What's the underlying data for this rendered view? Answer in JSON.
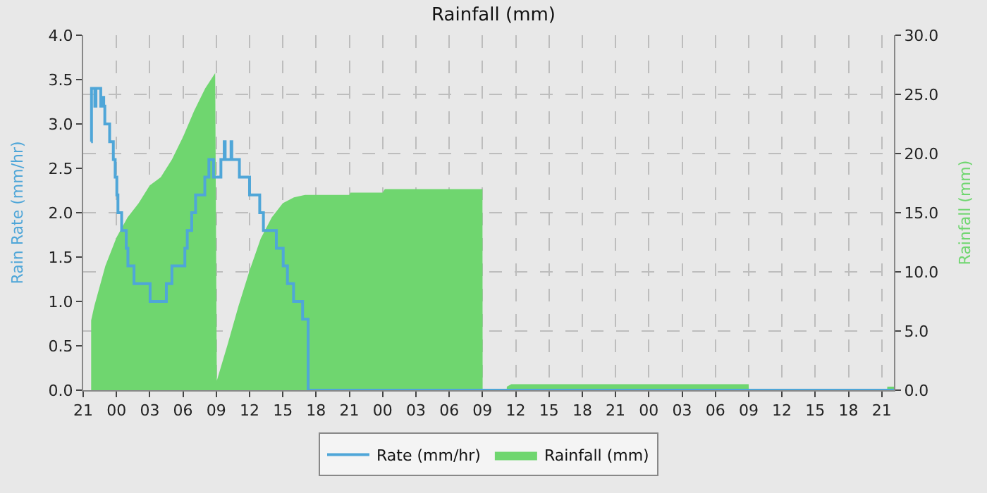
{
  "chart_data": {
    "type": "step",
    "title": "Rainfall (mm)",
    "ylabel": "Rain Rate (mm/hr)",
    "y2label": "Rainfall (mm)",
    "xlim": [
      "--01-01T21:00",
      "--01-04T22:06"
    ],
    "xticks": [
      {
        "value": "--01-01T21:00",
        "label": "21"
      },
      {
        "value": "--01-02T00:00",
        "label": "00"
      },
      {
        "value": "--01-02T03:00",
        "label": "03"
      },
      {
        "value": "--01-02T06:00",
        "label": "06"
      },
      {
        "value": "--01-02T09:00",
        "label": "09"
      },
      {
        "value": "--01-02T12:00",
        "label": "12"
      },
      {
        "value": "--01-02T15:00",
        "label": "15"
      },
      {
        "value": "--01-02T18:00",
        "label": "18"
      },
      {
        "value": "--01-02T21:00",
        "label": "21"
      },
      {
        "value": "--01-03T00:00",
        "label": "00"
      },
      {
        "value": "--01-03T03:00",
        "label": "03"
      },
      {
        "value": "--01-03T06:00",
        "label": "06"
      },
      {
        "value": "--01-03T09:00",
        "label": "09"
      },
      {
        "value": "--01-03T12:00",
        "label": "12"
      },
      {
        "value": "--01-03T15:00",
        "label": "15"
      },
      {
        "value": "--01-03T18:00",
        "label": "18"
      },
      {
        "value": "--01-03T21:00",
        "label": "21"
      },
      {
        "value": "--01-04T00:00",
        "label": "00"
      },
      {
        "value": "--01-04T03:00",
        "label": "03"
      },
      {
        "value": "--01-04T06:00",
        "label": "06"
      },
      {
        "value": "--01-04T09:00",
        "label": "09"
      },
      {
        "value": "--01-04T12:00",
        "label": "12"
      },
      {
        "value": "--01-04T15:00",
        "label": "15"
      },
      {
        "value": "--01-04T18:00",
        "label": "18"
      },
      {
        "value": "--01-04T21:00",
        "label": "21"
      }
    ],
    "ylim": [
      0,
      4
    ],
    "yticks": [
      {
        "value": 0,
        "label": "0.0"
      },
      {
        "value": 0.5,
        "label": "0.5"
      },
      {
        "value": 1,
        "label": "1.0"
      },
      {
        "value": 1.5,
        "label": "1.5"
      },
      {
        "value": 2,
        "label": "2.0"
      },
      {
        "value": 2.5,
        "label": "2.5"
      },
      {
        "value": 3,
        "label": "3.0"
      },
      {
        "value": 3.5,
        "label": "3.5"
      },
      {
        "value": 4,
        "label": "4.0"
      }
    ],
    "y2lim": [
      0,
      30
    ],
    "y2ticks": [
      {
        "value": 0,
        "label": "0.0"
      },
      {
        "value": 5,
        "label": "5.0"
      },
      {
        "value": 10,
        "label": "10.0"
      },
      {
        "value": 15,
        "label": "15.0"
      },
      {
        "value": 20,
        "label": "20.0"
      },
      {
        "value": 25,
        "label": "25.0"
      },
      {
        "value": 30,
        "label": "30.0"
      }
    ],
    "grid": true,
    "legend": "bottom",
    "line_style": "solid",
    "marker": "none",
    "series": [
      {
        "name": "Rainfall (mm)",
        "type": "area",
        "axis": "y2",
        "color": "#6fd66f",
        "x": [
          "--01-01T21:43",
          "--01-01T22:00",
          "--01-01T23:00",
          "--01-02T00:00",
          "--01-02T01:00",
          "--01-02T02:00",
          "--01-02T03:00",
          "--01-02T04:00",
          "--01-02T05:00",
          "--01-02T06:00",
          "--01-02T07:00",
          "--01-02T08:00",
          "--01-02T08:54",
          "--01-02T09:03",
          "--01-02T10:00",
          "--01-02T11:00",
          "--01-02T12:00",
          "--01-02T13:00",
          "--01-02T14:00",
          "--01-02T15:00",
          "--01-02T16:00",
          "--01-02T17:00",
          "--01-02T21:00",
          "--01-02T21:06",
          "--01-03T00:00",
          "--01-03T00:12",
          "--01-03T09:00",
          "--01-03T09:01",
          "--01-03T11:11",
          "--01-03T11:12",
          "--01-03T11:36",
          "--01-04T09:00",
          "--01-04T09:01",
          "--01-04T21:29",
          "--01-04T21:30",
          "--01-04T22:06"
        ],
        "values": [
          5.9,
          7.1,
          10.5,
          12.9,
          14.6,
          15.8,
          17.3,
          18.0,
          19.5,
          21.4,
          23.6,
          25.5,
          26.8,
          0.8,
          3.8,
          7.1,
          10.1,
          12.8,
          14.6,
          15.8,
          16.3,
          16.5,
          16.5,
          16.7,
          16.7,
          17.0,
          17.0,
          0,
          0,
          0.3,
          0.5,
          0.5,
          0,
          0,
          0.3,
          0.3
        ]
      },
      {
        "name": "Rate (mm/hr)",
        "color": "#4fa6d8",
        "x": [
          "--01-01T21:43",
          "--01-01T21:45",
          "--01-01T22:03",
          "--01-01T22:09",
          "--01-01T22:35",
          "--01-01T22:45",
          "--01-01T22:51",
          "--01-01T22:57",
          "--01-01T23:23",
          "--01-01T23:43",
          "--01-01T23:53",
          "--01-02T00:02",
          "--01-02T00:08",
          "--01-02T00:28",
          "--01-02T00:53",
          "--01-02T01:02",
          "--01-02T01:35",
          "--01-02T03:02",
          "--01-02T04:30",
          "--01-02T05:00",
          "--01-02T06:10",
          "--01-02T06:23",
          "--01-02T06:47",
          "--01-02T07:08",
          "--01-02T07:58",
          "--01-02T08:20",
          "--01-02T08:45",
          "--01-02T09:25",
          "--01-02T09:43",
          "--01-02T09:48",
          "--01-02T10:20",
          "--01-02T10:24",
          "--01-02T11:05",
          "--01-02T12:00",
          "--01-02T12:38",
          "--01-02T12:55",
          "--01-02T13:15",
          "--01-02T14:25",
          "--01-02T15:02",
          "--01-02T15:25",
          "--01-02T15:58",
          "--01-02T16:47",
          "--01-02T17:17",
          "--01-04T22:06"
        ],
        "values": [
          2.8,
          3.4,
          3.2,
          3.4,
          3.2,
          3.3,
          3.2,
          3.0,
          2.8,
          2.6,
          2.4,
          2.2,
          2.0,
          1.8,
          1.6,
          1.4,
          1.2,
          1.0,
          1.2,
          1.4,
          1.6,
          1.8,
          2.0,
          2.2,
          2.4,
          2.6,
          2.4,
          2.6,
          2.8,
          2.6,
          2.8,
          2.6,
          2.4,
          2.2,
          2.2,
          2.0,
          1.8,
          1.6,
          1.4,
          1.2,
          1.0,
          0.8,
          0.0,
          0.0
        ]
      }
    ]
  }
}
